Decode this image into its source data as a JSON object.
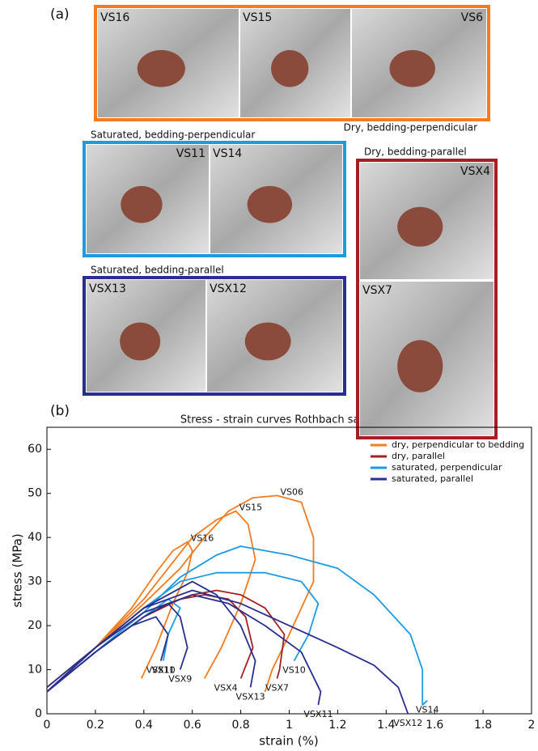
{
  "panel_a": {
    "label": "(a)",
    "groups": [
      {
        "caption": "Dry, bedding-perpendicular",
        "photos": [
          "VS16",
          "VS15",
          "VS6"
        ]
      },
      {
        "caption": "Saturated, bedding-perpendicular",
        "photos": [
          "VS11",
          "VS14"
        ]
      },
      {
        "caption": "Dry, bedding-parallel",
        "photos": [
          "VSX4",
          "VSX7"
        ]
      },
      {
        "caption": "Saturated, bedding-parallel",
        "photos": [
          "VSX13",
          "VSX12"
        ]
      }
    ]
  },
  "chart_data": {
    "type": "line",
    "panel_label": "(b)",
    "title": "Stress - strain curves Rothbach sandstone",
    "xlabel": "strain (%)",
    "ylabel": "stress (MPa)",
    "xlim": [
      0,
      2
    ],
    "ylim": [
      0,
      65
    ],
    "xticks": [
      0,
      0.2,
      0.4,
      0.6,
      0.8,
      1,
      1.2,
      1.4,
      1.6,
      1.8,
      2
    ],
    "yticks": [
      0,
      10,
      20,
      30,
      40,
      50,
      60
    ],
    "legend": "upper right",
    "series": [
      {
        "name": "dry, perpendicular to bedding",
        "color": "#f47b20",
        "curves": [
          {
            "label": "VS06",
            "x": [
              0,
              0.2,
              0.4,
              0.55,
              0.65,
              0.75,
              0.85,
              0.95,
              1.05,
              1.1,
              1.1,
              1.0,
              0.93,
              0.9
            ],
            "values": [
              5,
              15,
              25,
              33,
              40,
              46,
              49,
              49.5,
              48,
              40,
              30,
              18,
              10,
              5
            ]
          },
          {
            "label": "VS15",
            "x": [
              0,
              0.2,
              0.4,
              0.5,
              0.6,
              0.7,
              0.78,
              0.83,
              0.86,
              0.8,
              0.72,
              0.65
            ],
            "values": [
              5,
              15,
              26,
              33,
              40,
              44,
              46,
              43,
              35,
              25,
              15,
              8
            ]
          },
          {
            "label": "VS16",
            "x": [
              0,
              0.2,
              0.35,
              0.45,
              0.52,
              0.58,
              0.6,
              0.58,
              0.52,
              0.45,
              0.39
            ],
            "values": [
              5,
              15,
              24,
              32,
              37,
              39,
              37,
              32,
              25,
              15,
              8
            ]
          }
        ]
      },
      {
        "name": "dry, parallel",
        "color": "#a31f24",
        "curves": [
          {
            "label": "VSX4",
            "x": [
              0,
              0.2,
              0.4,
              0.55,
              0.65,
              0.75,
              0.82,
              0.85,
              0.8
            ],
            "values": [
              5,
              14,
              22,
              26,
              27,
              26,
              22,
              15,
              8
            ]
          },
          {
            "label": "VSX7",
            "x": [
              0,
              0.2,
              0.4,
              0.6,
              0.7,
              0.8,
              0.9,
              0.98,
              0.96,
              0.95
            ],
            "values": [
              6,
              15,
              23,
              27,
              28,
              27,
              24,
              18,
              10,
              8
            ]
          }
        ]
      },
      {
        "name": "saturated, perpendicular",
        "color": "#1e9ae0",
        "curves": [
          {
            "label": "VS10",
            "x": [
              0,
              0.2,
              0.4,
              0.55,
              0.7,
              0.9,
              1.05,
              1.12,
              1.08,
              1.02
            ],
            "values": [
              5,
              15,
              24,
              30,
              32,
              32,
              30,
              25,
              18,
              12
            ]
          },
          {
            "label": "VS14",
            "x": [
              0,
              0.2,
              0.4,
              0.55,
              0.7,
              0.8,
              1.0,
              1.2,
              1.35,
              1.5,
              1.55,
              1.55,
              1.57
            ],
            "values": [
              5,
              14,
              23,
              31,
              36,
              38,
              36,
              33,
              27,
              18,
              10,
              2,
              3
            ]
          },
          {
            "label": "VS11",
            "x": [
              0,
              0.2,
              0.4,
              0.5,
              0.55,
              0.5,
              0.48
            ],
            "values": [
              5,
              14,
              22,
              26,
              24,
              18,
              12
            ]
          }
        ]
      },
      {
        "name": "saturated, parallel",
        "color": "#2b2f8c",
        "curves": [
          {
            "label": "VSX10",
            "x": [
              0,
              0.2,
              0.35,
              0.45,
              0.5,
              0.47
            ],
            "values": [
              5,
              14,
              20,
              22,
              18,
              12
            ]
          },
          {
            "label": "VSX9",
            "x": [
              0,
              0.2,
              0.4,
              0.5,
              0.55,
              0.58,
              0.55
            ],
            "values": [
              5,
              14,
              22,
              25,
              22,
              15,
              10
            ]
          },
          {
            "label": "VSX13",
            "x": [
              0,
              0.2,
              0.4,
              0.6,
              0.7,
              0.8,
              0.86,
              0.84
            ],
            "values": [
              5,
              15,
              24,
              30,
              27,
              20,
              12,
              6
            ]
          },
          {
            "label": "VSX12",
            "x": [
              0,
              0.2,
              0.4,
              0.6,
              0.8,
              1.0,
              1.2,
              1.35,
              1.45,
              1.49
            ],
            "values": [
              6,
              15,
              24,
              28,
              25,
              20,
              15,
              11,
              6,
              0
            ]
          },
          {
            "label": "VSX11",
            "x": [
              0,
              0.2,
              0.4,
              0.6,
              0.75,
              0.9,
              1.05,
              1.13,
              1.12
            ],
            "values": [
              5,
              15,
              23,
              27,
              25,
              20,
              14,
              5,
              2
            ]
          }
        ]
      }
    ]
  }
}
